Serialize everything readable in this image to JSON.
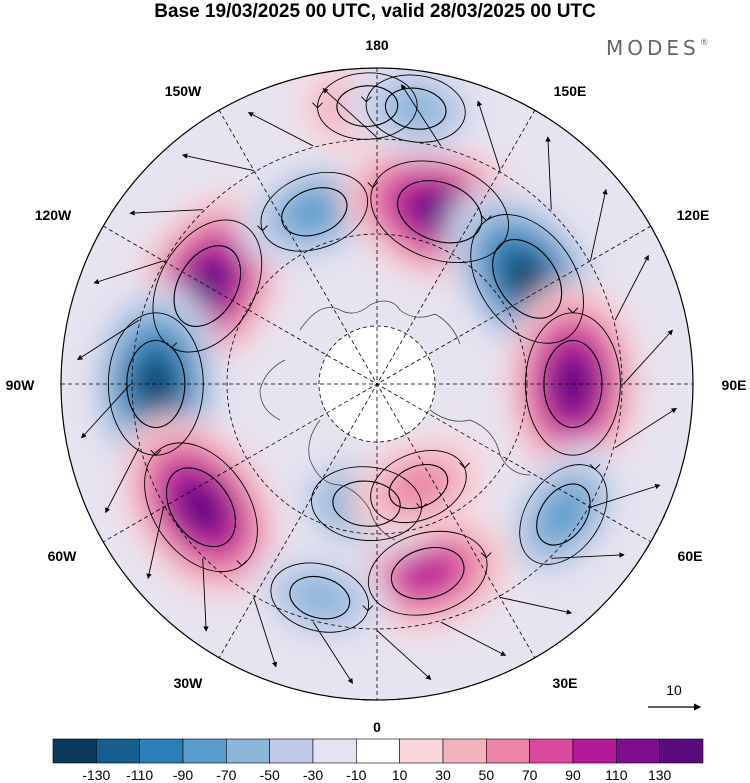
{
  "title": "Base 19/03/2025 00 UTC, valid 28/03/2025 00 UTC",
  "brand": {
    "name": "MODES",
    "mark": "®"
  },
  "longitudes": {
    "top": "180",
    "bottom": "0",
    "left": "90W",
    "right": "90E",
    "n150W": "150W",
    "n150E": "150E",
    "n120W": "120W",
    "n120E": "120E",
    "s60W": "60W",
    "s60E": "60E",
    "s30W": "30W",
    "s30E": "30E"
  },
  "vector_scale": {
    "label": "10"
  },
  "colorbar": {
    "colors": [
      "#0b3a5c",
      "#155f8f",
      "#2b7fb8",
      "#5a9ccc",
      "#8cb6dc",
      "#bdc9e6",
      "#e3e3f1",
      "#ffffff",
      "#f9d8dc",
      "#f3b3bf",
      "#ec85a8",
      "#d94a9e",
      "#b5199a",
      "#7e0e8e",
      "#5a0b7d"
    ],
    "ticks": [
      "-130",
      "-110",
      "-90",
      "-70",
      "-50",
      "-30",
      "-10",
      "10",
      "30",
      "50",
      "70",
      "90",
      "110",
      "130"
    ]
  },
  "anomaly_cells": [
    {
      "lon_deg": -120,
      "colat": 0.62,
      "level": 130
    },
    {
      "lon_deg": -90,
      "colat": 0.7,
      "level": -130
    },
    {
      "lon_deg": -55,
      "colat": 0.68,
      "level": 130
    },
    {
      "lon_deg": -160,
      "colat": 0.58,
      "level": -70
    },
    {
      "lon_deg": 160,
      "colat": 0.58,
      "level": 130
    },
    {
      "lon_deg": 125,
      "colat": 0.58,
      "level": -130
    },
    {
      "lon_deg": 90,
      "colat": 0.62,
      "level": 130
    },
    {
      "lon_deg": 55,
      "colat": 0.72,
      "level": -70
    },
    {
      "lon_deg": 15,
      "colat": 0.62,
      "level": 90
    },
    {
      "lon_deg": -15,
      "colat": 0.7,
      "level": -50
    },
    {
      "lon_deg": -5,
      "colat": 0.38,
      "level": -70
    },
    {
      "lon_deg": 22,
      "colat": 0.35,
      "level": 50
    },
    {
      "lon_deg": -178,
      "colat": 0.88,
      "level": 50
    },
    {
      "lon_deg": 172,
      "colat": 0.88,
      "level": -50
    }
  ]
}
